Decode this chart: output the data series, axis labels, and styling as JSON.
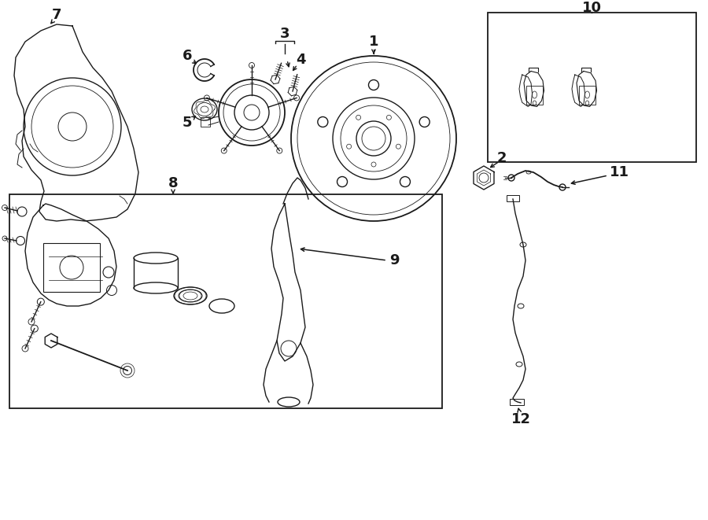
{
  "bg_color": "#ffffff",
  "line_color": "#1a1a1a",
  "fig_width": 9.0,
  "fig_height": 6.61,
  "dpi": 100,
  "xlim": [
    0,
    9.0
  ],
  "ylim": [
    0,
    6.61
  ]
}
